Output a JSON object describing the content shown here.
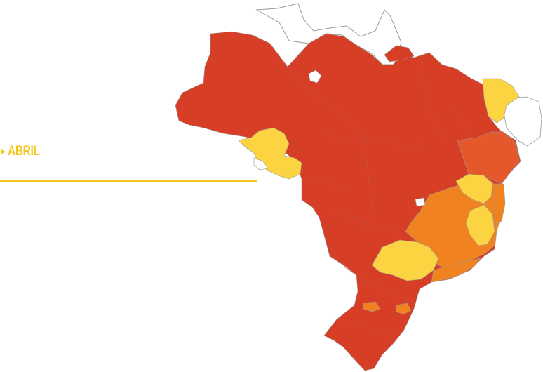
{
  "month_label": "ABRIL",
  "colors": {
    "accent": "#f5c518",
    "level_high": "#d63e26",
    "level_mid_high": "#e4582b",
    "level_mid": "#f0821f",
    "level_low": "#fcd340",
    "no_data": "#ffffff",
    "border": "#9a9a9a"
  }
}
